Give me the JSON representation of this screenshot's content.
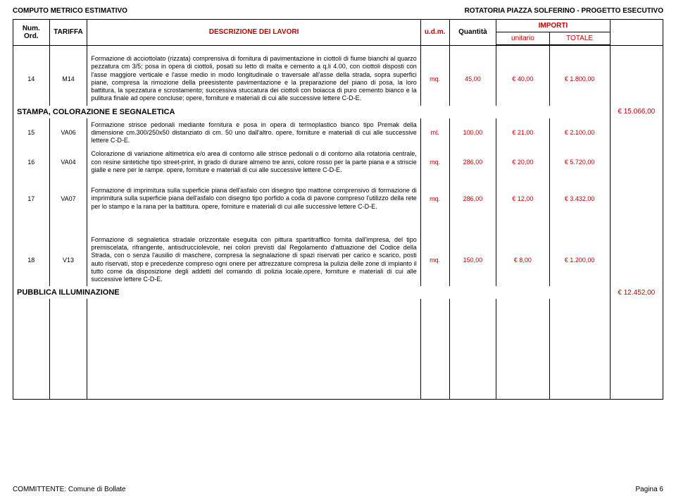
{
  "header": {
    "left": "COMPUTO METRICO ESTIMATIVO",
    "right": "ROTATORIA PIAZZA SOLFERINO - PROGETTO ESECUTIVO"
  },
  "columns": {
    "num": "Num. Ord.",
    "tariffa": "TARIFFA",
    "desc": "DESCRIZIONE DEI LAVORI",
    "udm": "u.d.m.",
    "qty": "Quantità",
    "importi": "IMPORTI",
    "unitario": "unitario",
    "totale": "TOTALE"
  },
  "rows": [
    {
      "num": "14",
      "tar": "M14",
      "desc": "Formazione di acciottolato (rizzata) comprensiva di fornitura di pavimentazione in ciottoli di fiume bianchi al quarzo pezzatura cm 3/5;\nposa in opera di ciottoli, posati su letto di malta e cemento a q.li 4.00, con ciottoli disposti con l'asse maggiore verticale e l'asse medio in modo longitudinale o traversale all'asse della strada, sopra superfici piane, compresa la rimozione della preesistente pavimentazione e la preparazione del piano di posa, la loro battitura, la spezzatura e scrostamento;\nsuccessiva stuccatura dei ciottoli con boiacca di puro cemento bianco e la pulitura finale ad opere concluse;\nopere, forniture e materiali di cui alle successive lettere C-D-E.",
      "udm": "mq.",
      "qty": "45,00",
      "unit": "€ 40,00",
      "tot": "€ 1.800,00",
      "extra": ""
    }
  ],
  "section1": {
    "label": "STAMPA, COLORAZIONE E SEGNALETICA",
    "extra": "€ 15.066,00"
  },
  "rows2": [
    {
      "num": "15",
      "tar": "VA06",
      "desc": "Formazione strisce pedonali mediante fornitura e posa in opera di termoplastico bianco tipo Premak della dimensione cm.300/250x50 distanziato di cm. 50 uno dall'altro.\nopere, forniture e materiali di cui alle successive lettere C-D-E.",
      "udm": "ml.",
      "qty": "100,00",
      "unit": "€ 21,00",
      "tot": "€ 2.100,00"
    },
    {
      "num": "16",
      "tar": "VA04",
      "desc": "Colorazione di variazione altimetrica e/o area di contorno alle strisce pedonali o di contorno alla rotatoria centrale, con resine sintetiche tipo street-print, in grado di durare almeno tre anni, colore rosso per la parte piana e a striscie gialle e nere per le rampe.\nopere, forniture e materiali di cui alle successive lettere C-D-E.",
      "udm": "mq.",
      "qty": "286,00",
      "unit": "€ 20,00",
      "tot": "€ 5.720,00"
    },
    {
      "num": "17",
      "tar": "VA07",
      "desc": "Formazione di imprimitura sulla superficie piana dell'asfalo con disegno tipo mattone  comprensivo di formazione di imprimitura sulla superficie piana dell'asfalo con disegno tipo porfido a coda di pavone compreso l'utilizzo della rete per lo stampo e la rana per la battitura.\nopere, forniture e materiali di cui alle successive lettere C-D-E.",
      "udm": "mq.",
      "qty": "286,00",
      "unit": "€ 12,00",
      "tot": "€ 3.432,00"
    }
  ],
  "rows3": [
    {
      "num": "18",
      "tar": "V13",
      "desc": "Formazione di segnaletica stradale orizzontale eseguita con pittura spartitraffico fornita dall'impresa, del tipo premiscelata, rifrangente, antisdrucciolevole, nei colori previsti dal Regolamento d'attuazione del Codice della Strada, con o senza l'ausilio di maschere, compresa la segnalazione di spazi riservati per carico e scarico, posti auto riservati, stop e precedenze compreso ogni onere per attrezzature compresa la pulizia delle zone di impianto il tutto come da disposizione degli addetti del comando di polizia locale.opere, forniture e materiali di cui alle successive lettere C-D-E.",
      "udm": "mq.",
      "qty": "150,00",
      "unit": "€ 8,00",
      "tot": "€ 1.200,00"
    }
  ],
  "section2": {
    "label": "PUBBLICA ILLUMINAZIONE",
    "extra": "€ 12.452,00"
  },
  "footer": {
    "left": "COMMITTENTE: Comune di Bollate",
    "right": "Pagina 6"
  },
  "colors": {
    "red": "#c00000",
    "text": "#000000",
    "bg": "#ffffff"
  }
}
